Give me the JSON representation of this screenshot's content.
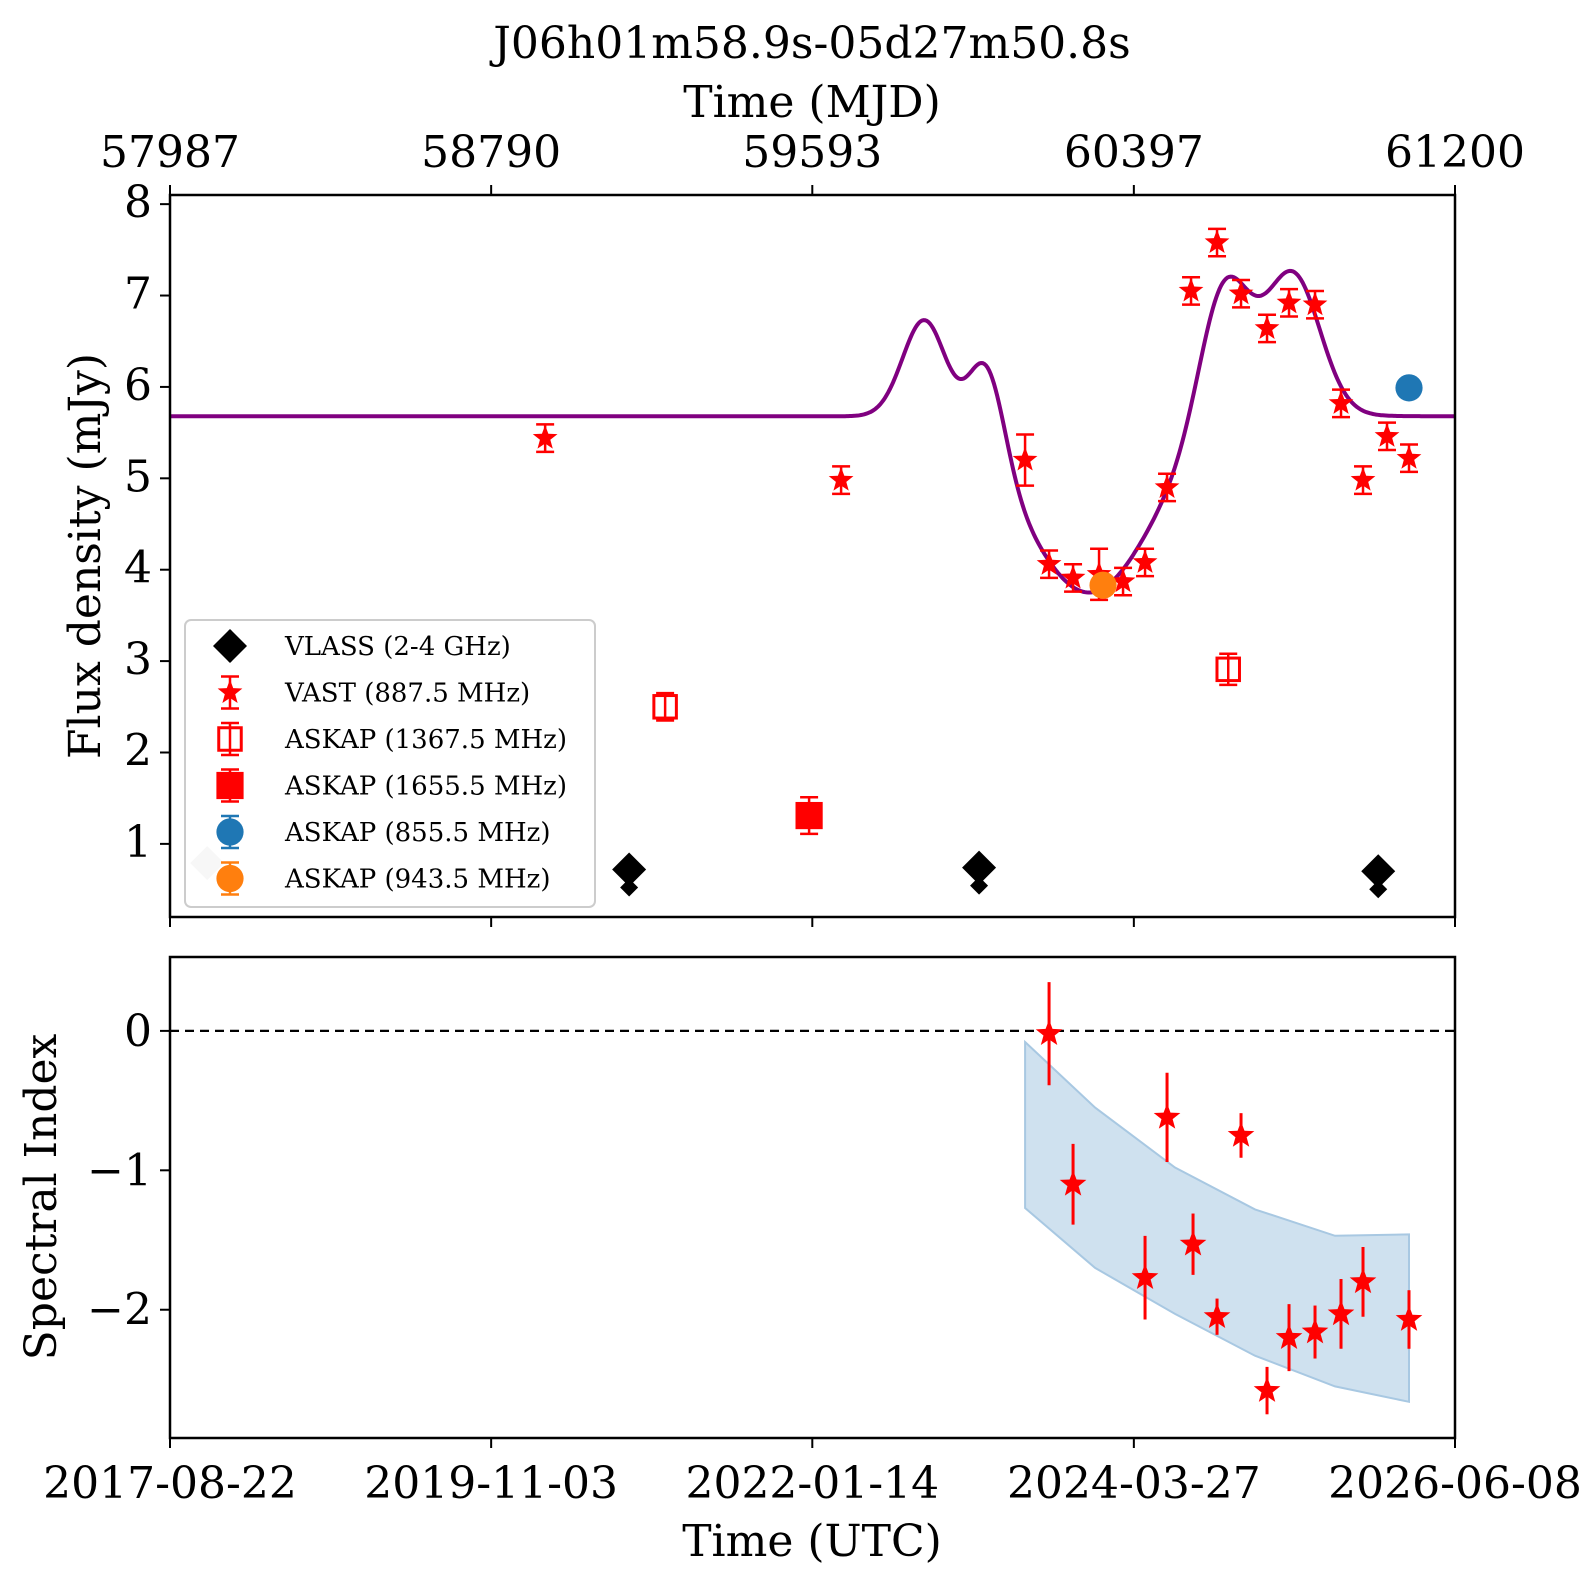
{
  "figure": {
    "title": "J06h01m58.9s-05d27m50.8s",
    "top_axis_label": "Time (MJD)",
    "bottom_axis_label": "Time (UTC)"
  },
  "chart_data": [
    {
      "type": "scatter",
      "panel": "top",
      "title": "J06h01m58.9s-05d27m50.8s",
      "xlabel": "Time (UTC)",
      "x2label": "Time (MJD)",
      "ylabel": "Flux density (mJy)",
      "xlim_mjd": [
        57987,
        61200
      ],
      "ylim": [
        0.2,
        8.1
      ],
      "yticks": [
        1,
        2,
        3,
        4,
        5,
        6,
        7,
        8
      ],
      "top_ticks_mjd": [
        57987,
        58790,
        59593,
        60397,
        61200
      ],
      "grid": false,
      "legend": {
        "placement": "lower-left"
      },
      "series": [
        {
          "name": "VLASS (2-4 GHz)",
          "marker": "diamond",
          "color": "#000000",
          "points": [
            {
              "x": 59135,
              "y": 0.72,
              "yerr": 0.05
            },
            {
              "x": 60010,
              "y": 0.74,
              "yerr": 0.04
            },
            {
              "x": 61008,
              "y": 0.7,
              "yerr": 0.05
            }
          ]
        },
        {
          "name": "VAST (887.5 MHz)",
          "marker": "star",
          "color": "#ff0000",
          "points": [
            {
              "x": 58925,
              "y": 5.44,
              "yerr": 0.15
            },
            {
              "x": 59665,
              "y": 4.98,
              "yerr": 0.15
            },
            {
              "x": 60125,
              "y": 5.2,
              "yerr": 0.28
            },
            {
              "x": 60185,
              "y": 4.06,
              "yerr": 0.15
            },
            {
              "x": 60245,
              "y": 3.91,
              "yerr": 0.15
            },
            {
              "x": 60310,
              "y": 3.95,
              "yerr": 0.28
            },
            {
              "x": 60370,
              "y": 3.87,
              "yerr": 0.15
            },
            {
              "x": 60425,
              "y": 4.08,
              "yerr": 0.15
            },
            {
              "x": 60480,
              "y": 4.9,
              "yerr": 0.15
            },
            {
              "x": 60540,
              "y": 7.05,
              "yerr": 0.15
            },
            {
              "x": 60605,
              "y": 7.58,
              "yerr": 0.15
            },
            {
              "x": 60665,
              "y": 7.02,
              "yerr": 0.15
            },
            {
              "x": 60730,
              "y": 6.64,
              "yerr": 0.15
            },
            {
              "x": 60785,
              "y": 6.92,
              "yerr": 0.15
            },
            {
              "x": 60850,
              "y": 6.9,
              "yerr": 0.15
            },
            {
              "x": 60915,
              "y": 5.82,
              "yerr": 0.15
            },
            {
              "x": 60970,
              "y": 4.98,
              "yerr": 0.15
            },
            {
              "x": 61030,
              "y": 5.46,
              "yerr": 0.15
            },
            {
              "x": 61085,
              "y": 5.22,
              "yerr": 0.15
            }
          ]
        },
        {
          "name": "ASKAP (1367.5 MHz)",
          "marker": "square-open",
          "color": "#ff0000",
          "points": [
            {
              "x": 59225,
              "y": 2.5,
              "yerr": 0.15
            },
            {
              "x": 60633,
              "y": 2.91,
              "yerr": 0.17
            }
          ]
        },
        {
          "name": "ASKAP (1655.5 MHz)",
          "marker": "square",
          "color": "#ff0000",
          "points": [
            {
              "x": 59585,
              "y": 1.31,
              "yerr": 0.2
            }
          ]
        },
        {
          "name": "ASKAP (855.5 MHz)",
          "marker": "circle",
          "color": "#1f77b4",
          "points": [
            {
              "x": 61085,
              "y": 5.99,
              "yerr": 0.0
            }
          ]
        },
        {
          "name": "ASKAP (943.5 MHz)",
          "marker": "circle",
          "color": "#ff7f0e",
          "points": [
            {
              "x": 60320,
              "y": 3.83,
              "yerr": 0.0
            }
          ]
        },
        {
          "name": "",
          "marker": "diamond",
          "color": "#c8c8c8",
          "points": [
            {
              "x": 58080,
              "y": 0.79,
              "yerr": 0.0
            }
          ]
        }
      ],
      "model": {
        "color": "#800080",
        "baseline": 5.68,
        "components": [
          {
            "center": 59875,
            "sigma": 55,
            "amp": 1.12
          },
          {
            "center": 60030,
            "sigma": 45,
            "amp": 1.06
          },
          {
            "center": 60285,
            "sigma": 160,
            "amp": -1.93
          },
          {
            "center": 60620,
            "sigma": 60,
            "amp": 1.38
          },
          {
            "center": 60800,
            "sigma": 65,
            "amp": 1.24
          },
          {
            "center": 60720,
            "sigma": 100,
            "amp": 0.45
          }
        ]
      }
    },
    {
      "type": "scatter",
      "panel": "bottom",
      "xlabel": "Time (UTC)",
      "ylabel": "Spectral Index",
      "xlim_mjd": [
        57987,
        61200
      ],
      "ylim": [
        -2.92,
        0.53
      ],
      "yticks": [
        0,
        -1,
        -2
      ],
      "ytick_labels": [
        "0",
        "−1",
        "−2"
      ],
      "bottom_ticks_mjd": [
        57987,
        58790,
        59593,
        60397,
        61200
      ],
      "bottom_tick_labels": [
        "2017-08-22",
        "2019-11-03",
        "2022-01-14",
        "2024-03-27",
        "2026-06-08"
      ],
      "reference_line": {
        "y": 0,
        "style": "dashed",
        "color": "#000000"
      },
      "band": {
        "color": "#a8c8e2",
        "x": [
          60125,
          60300,
          60500,
          60700,
          60900,
          61085
        ],
        "upper": [
          -0.08,
          -0.55,
          -0.98,
          -1.28,
          -1.47,
          -1.46
        ],
        "lower": [
          -1.27,
          -1.7,
          -2.03,
          -2.33,
          -2.55,
          -2.66
        ]
      },
      "series": [
        {
          "name": "Spectral index",
          "marker": "star",
          "color": "#ff0000",
          "points": [
            {
              "x": 60185,
              "y": -0.02,
              "yerr": 0.37
            },
            {
              "x": 60245,
              "y": -1.1,
              "yerr": 0.29
            },
            {
              "x": 60425,
              "y": -1.77,
              "yerr": 0.3
            },
            {
              "x": 60480,
              "y": -0.62,
              "yerr": 0.32
            },
            {
              "x": 60545,
              "y": -1.53,
              "yerr": 0.22
            },
            {
              "x": 60605,
              "y": -2.05,
              "yerr": 0.13
            },
            {
              "x": 60665,
              "y": -0.75,
              "yerr": 0.16
            },
            {
              "x": 60730,
              "y": -2.58,
              "yerr": 0.17
            },
            {
              "x": 60785,
              "y": -2.2,
              "yerr": 0.24
            },
            {
              "x": 60850,
              "y": -2.16,
              "yerr": 0.19
            },
            {
              "x": 60915,
              "y": -2.03,
              "yerr": 0.25
            },
            {
              "x": 60970,
              "y": -1.8,
              "yerr": 0.25
            },
            {
              "x": 61085,
              "y": -2.07,
              "yerr": 0.21
            }
          ]
        }
      ]
    }
  ]
}
